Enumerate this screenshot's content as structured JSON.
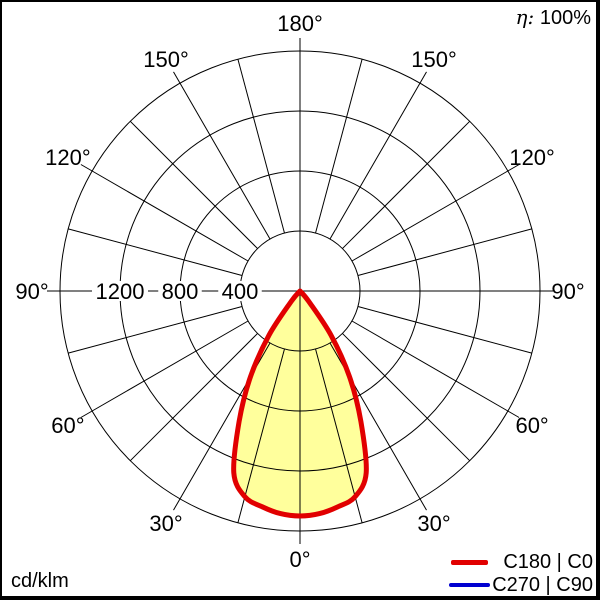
{
  "frame": {
    "background": "#ffffff",
    "border_color": "#000000"
  },
  "header": {
    "efficiency_symbol": "η:",
    "efficiency_value": "100%"
  },
  "footer": {
    "units_label": "cd/klm"
  },
  "legend": {
    "entries": [
      {
        "label": "C180 | C0",
        "color": "#e10000"
      },
      {
        "label": "C270 | C90",
        "color": "#0000d0"
      }
    ]
  },
  "chart_data": {
    "type": "polar",
    "subtype": "luminous-intensity-distribution",
    "units": "cd/klm",
    "angle_convention": "0 deg at nadir (bottom), 180 deg at zenith (top), symmetric left/right",
    "angle_labels_deg": [
      0,
      30,
      60,
      90,
      120,
      150,
      180
    ],
    "spoke_step_deg": 15,
    "radial_rings": [
      400,
      800,
      1200,
      1600
    ],
    "radial_tick_labels": [
      400,
      800,
      1200
    ],
    "radial_max": 1600,
    "fill_color": "#ffff9c",
    "grid_color": "#000000",
    "series": [
      {
        "name": "C180 | C0",
        "color": "#e10000",
        "stroke_width": 5,
        "symmetric": true,
        "angles_deg": [
          0,
          5,
          10,
          15,
          20,
          25,
          30,
          35,
          40,
          45
        ],
        "values_cd_per_klm": [
          1500,
          1490,
          1460,
          1420,
          1290,
          960,
          660,
          360,
          90,
          0
        ]
      },
      {
        "name": "C270 | C90",
        "color": "#0000d0",
        "stroke_width": 3.5,
        "symmetric": true,
        "angles_deg": [
          0,
          5,
          10,
          15,
          20,
          25,
          30,
          35,
          40,
          45
        ],
        "values_cd_per_klm": [
          1500,
          1490,
          1460,
          1420,
          1290,
          960,
          660,
          360,
          90,
          0
        ]
      }
    ]
  }
}
